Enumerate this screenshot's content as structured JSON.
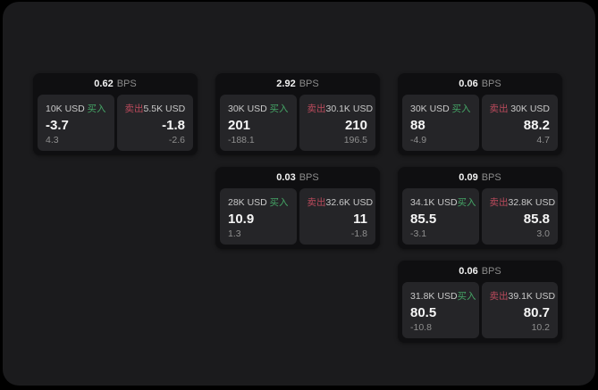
{
  "labels": {
    "unit": "BPS",
    "buy": "买入",
    "sell": "卖出"
  },
  "colors": {
    "buy_green": "#45a566",
    "sell_red": "#bb4a5c",
    "panel_bg": "#1b1b1d",
    "card_bg": "#0f0f11",
    "pane_bg": "#252528"
  },
  "cards": [
    {
      "bps": "0.62",
      "buy": {
        "amount": "10K USD",
        "value": "-3.7",
        "sub": "4.3"
      },
      "sell": {
        "amount": "5.5K USD",
        "value": "-1.8",
        "sub": "-2.6"
      }
    },
    {
      "bps": "2.92",
      "buy": {
        "amount": "30K USD",
        "value": "201",
        "sub": "-188.1"
      },
      "sell": {
        "amount": "30.1K USD",
        "value": "210",
        "sub": "196.5"
      }
    },
    {
      "bps": "0.06",
      "buy": {
        "amount": "30K USD",
        "value": "88",
        "sub": "-4.9"
      },
      "sell": {
        "amount": "30K USD",
        "value": "88.2",
        "sub": "4.7"
      }
    },
    {
      "bps": "0.03",
      "buy": {
        "amount": "28K USD",
        "value": "10.9",
        "sub": "1.3"
      },
      "sell": {
        "amount": "32.6K USD",
        "value": "11",
        "sub": "-1.8"
      }
    },
    {
      "bps": "0.09",
      "buy": {
        "amount": "34.1K USD",
        "value": "85.5",
        "sub": "-3.1"
      },
      "sell": {
        "amount": "32.8K USD",
        "value": "85.8",
        "sub": "3.0"
      }
    },
    {
      "bps": "0.06",
      "buy": {
        "amount": "31.8K USD",
        "value": "80.5",
        "sub": "-10.8"
      },
      "sell": {
        "amount": "39.1K USD",
        "value": "80.7",
        "sub": "10.2"
      }
    }
  ]
}
